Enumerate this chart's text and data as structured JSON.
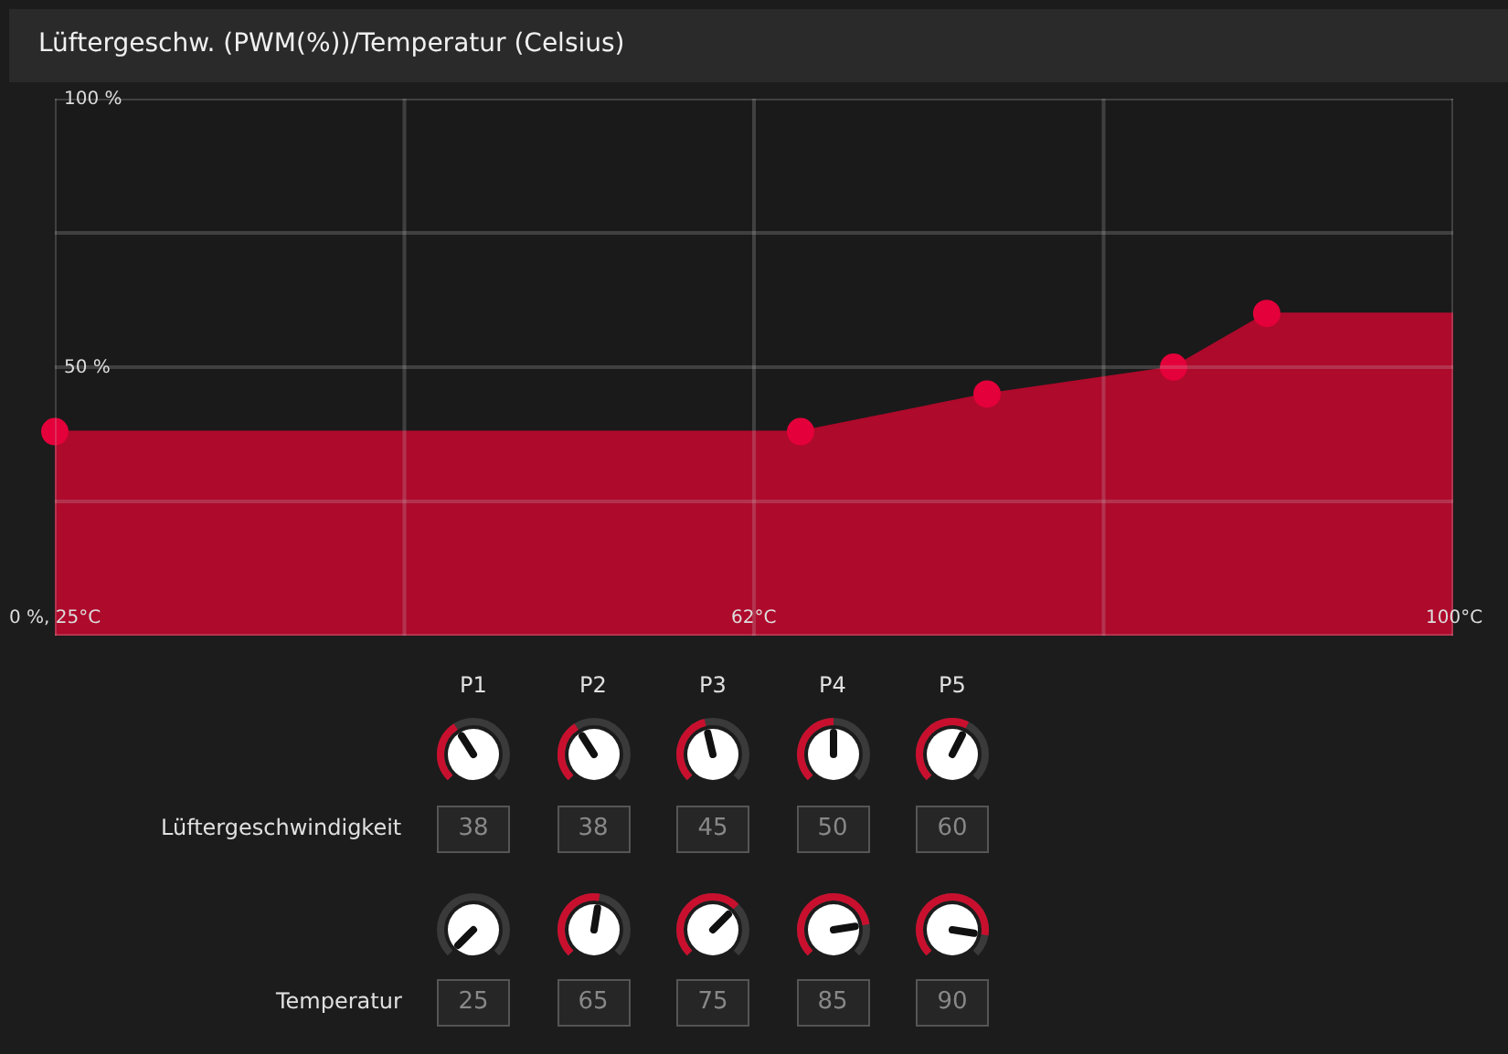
{
  "chart_data": [
    {
      "type": "area",
      "title": "Lüftergeschw. (PWM(%))/Temperatur (Celsius)",
      "series": [
        {
          "type": "area",
          "color": "#ae0a2c",
          "x": [
            25,
            65,
            75,
            85,
            90,
            100
          ],
          "values": [
            38,
            38,
            45,
            50,
            60,
            60
          ],
          "marker": "none"
        },
        {
          "type": "scatter",
          "color": "#e4003a",
          "x": [
            25,
            65,
            75,
            85,
            90
          ],
          "values": [
            38,
            38,
            45,
            50,
            60
          ],
          "marker": "circle"
        }
      ],
      "xlim": [
        25,
        100
      ],
      "ylim": [
        0,
        100
      ],
      "xticks": [
        {
          "value": 25,
          "label": "0 %, 25°C"
        },
        {
          "value": 43.75,
          "label": null
        },
        {
          "value": 62.5,
          "label": "62°C"
        },
        {
          "value": 81.25,
          "label": null
        },
        {
          "value": 100,
          "label": "100°C"
        }
      ],
      "yticks": [
        {
          "value": 0,
          "label": null
        },
        {
          "value": 25,
          "label": null
        },
        {
          "value": 50,
          "label": "50 %"
        },
        {
          "value": 75,
          "label": null
        },
        {
          "value": 100,
          "label": "100 %"
        }
      ],
      "grid": true
    },
    {
      "type": "other",
      "categories": [
        "P1",
        "P2",
        "P3",
        "P4",
        "P5"
      ],
      "data_labels": true,
      "series": [
        {
          "name": "Lüftergeschwindigkeit",
          "values": [
            38,
            38,
            45,
            50,
            60
          ]
        },
        {
          "name": "Temperatur",
          "values": [
            25,
            65,
            75,
            85,
            90
          ]
        }
      ]
    }
  ]
}
